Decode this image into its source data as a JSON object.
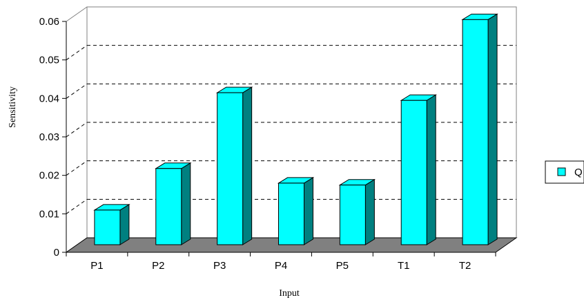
{
  "chart_data": {
    "type": "bar",
    "title": "",
    "xlabel": "Input",
    "ylabel": "Sensitivity",
    "categories": [
      "P1",
      "P2",
      "P3",
      "P4",
      "P5",
      "T1",
      "T2"
    ],
    "series": [
      {
        "name": "Q",
        "values": [
          0.009,
          0.0198,
          0.0395,
          0.016,
          0.0155,
          0.0375,
          0.0585
        ]
      }
    ],
    "ylim": [
      0,
      0.06
    ],
    "yticks": [
      "0",
      "0.01",
      "0.02",
      "0.03",
      "0.04",
      "0.05",
      "0.06"
    ],
    "grid": true,
    "legend_position": "right",
    "colors": {
      "bar_front": "#00FFFF",
      "bar_side": "#008080",
      "bar_top": "#00FFFF",
      "floor": "#808080",
      "gridline": "#000000"
    }
  }
}
